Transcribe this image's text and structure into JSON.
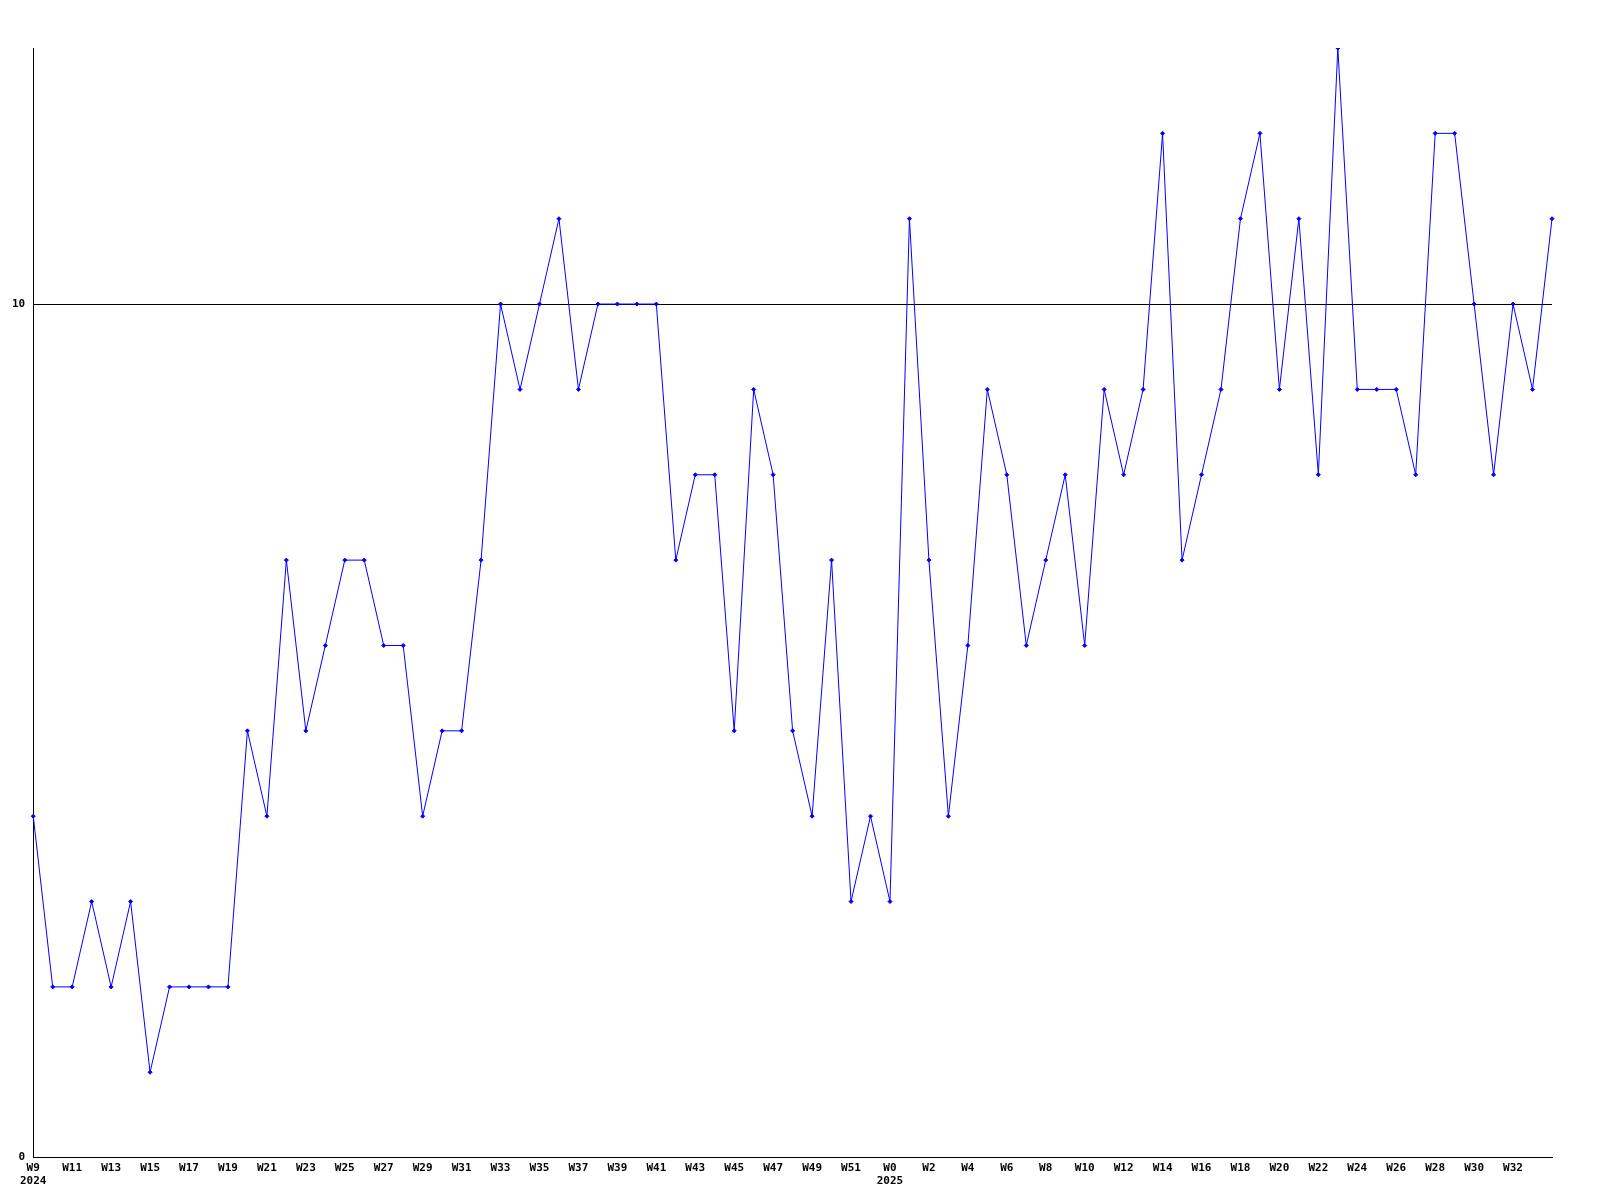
{
  "chart_data": {
    "type": "line",
    "categories": [
      "W9\n2024",
      null,
      "W11",
      null,
      "W13",
      null,
      "W15",
      null,
      "W17",
      null,
      "W19",
      null,
      "W21",
      null,
      "W23",
      null,
      "W25",
      null,
      "W27",
      null,
      "W29",
      null,
      "W31",
      null,
      "W33",
      null,
      "W35",
      null,
      "W37",
      null,
      "W39",
      null,
      "W41",
      null,
      "W43",
      null,
      "W45",
      null,
      "W47",
      null,
      "W49",
      null,
      "W51",
      null,
      "W0\n2025",
      null,
      "W2",
      null,
      "W4",
      null,
      "W6",
      null,
      "W8",
      null,
      "W10",
      null,
      "W12",
      null,
      "W14",
      null,
      "W16",
      null,
      "W18",
      null,
      "W20",
      null,
      "W22",
      null,
      "W24",
      null,
      "W26",
      null,
      "W28",
      null,
      "W30",
      null,
      "W32",
      null,
      null
    ],
    "series": [
      {
        "color": "#0000ff",
        "values": [
          4,
          2,
          2,
          3,
          2,
          3,
          1,
          2,
          2,
          2,
          2,
          5,
          4,
          7,
          5,
          6,
          7,
          7,
          6,
          6,
          4,
          5,
          5,
          7,
          10,
          9,
          10,
          11,
          9,
          10,
          10,
          10,
          10,
          7,
          8,
          8,
          5,
          9,
          8,
          5,
          4,
          7,
          3,
          4,
          3,
          11,
          7,
          4,
          6,
          9,
          8,
          6,
          7,
          8,
          6,
          9,
          8,
          9,
          12,
          7,
          8,
          9,
          11,
          12,
          9,
          11,
          8,
          13,
          9,
          9,
          9,
          8,
          12,
          12,
          10,
          8,
          10,
          9,
          11
        ]
      }
    ],
    "ylim": [
      0,
      13
    ],
    "yticks": [
      0,
      10
    ],
    "grid": "y",
    "marker": "diamond",
    "legend": false
  }
}
